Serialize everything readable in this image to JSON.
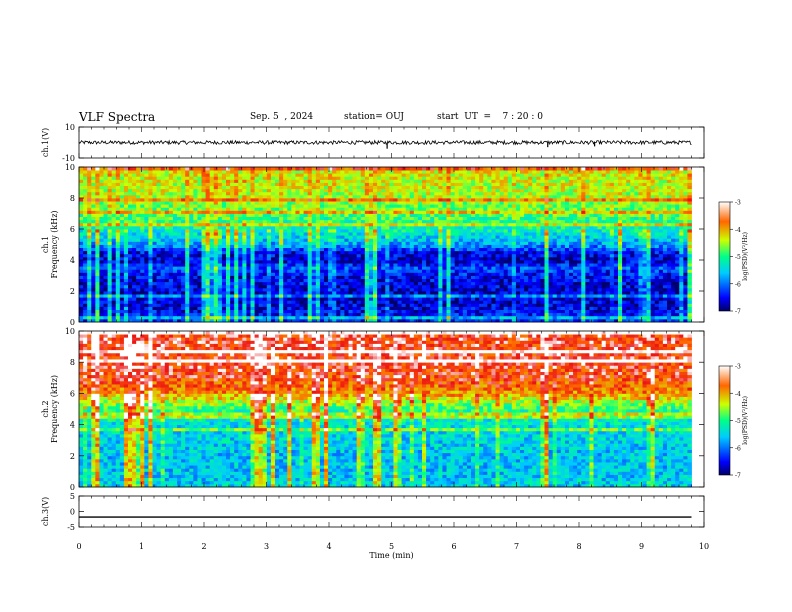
{
  "header": {
    "title": "VLF Spectra",
    "date": "Sep. 5  , 2024",
    "station": "station= OUJ",
    "start": "start  UT  =    7 : 20 : 0"
  },
  "chart_data": [
    {
      "type": "line",
      "panel": "ch1-waveform",
      "ylabel": "ch.1(V)",
      "ylim": [
        -10,
        10
      ],
      "yticks": [
        "10",
        "-10"
      ],
      "xlim": [
        0,
        9.8
      ],
      "baseline": 0,
      "noise_amplitude": 1.2,
      "spikes": [
        {
          "x": 4.93,
          "y": -4
        },
        {
          "x": 7.5,
          "y": -3
        },
        {
          "x": 8.25,
          "y": -2.5
        }
      ],
      "color": "#000000"
    },
    {
      "type": "heatmap",
      "panel": "ch1-spectrogram",
      "ylabel": "ch.1\nFrequency  (kHz)",
      "ylim": [
        0,
        10
      ],
      "yticks": [
        "0",
        "2",
        "4",
        "6",
        "8",
        "10"
      ],
      "xlim": [
        0,
        9.8
      ],
      "frequency_profile_khz": [
        0,
        1,
        2,
        3,
        3.5,
        4,
        4.5,
        5,
        6,
        7,
        8,
        9,
        10
      ],
      "log_psd_profile": [
        -6.3,
        -6.6,
        -6.7,
        -6.5,
        -6.2,
        -6.7,
        -6.5,
        -5.8,
        -5.2,
        -4.8,
        -4.5,
        -4.4,
        -4.3
      ],
      "colorbar": {
        "label": "log(PSD)(V²/Hz)",
        "range": [
          -7,
          -3
        ],
        "ticks": [
          "-3",
          "-4",
          "-5",
          "-6",
          "-7"
        ]
      }
    },
    {
      "type": "heatmap",
      "panel": "ch2-spectrogram",
      "ylabel": "ch.2\nFrequency  (kHz)",
      "ylim": [
        0,
        10
      ],
      "yticks": [
        "0",
        "2",
        "4",
        "6",
        "8",
        "10"
      ],
      "xlim": [
        0,
        9.8
      ],
      "frequency_profile_khz": [
        0,
        1,
        2,
        3,
        4,
        5,
        6,
        7,
        8,
        9,
        10
      ],
      "log_psd_profile": [
        -5.5,
        -5.6,
        -5.6,
        -5.5,
        -5.4,
        -5.0,
        -3.9,
        -3.5,
        -3.4,
        -3.4,
        -3.4
      ],
      "colorbar": {
        "label": "log(PSD)(V²/Hz)",
        "range": [
          -7,
          -3
        ],
        "ticks": [
          "-3",
          "-4",
          "-5",
          "-6",
          "-7"
        ]
      }
    },
    {
      "type": "line",
      "panel": "ch3-waveform",
      "ylabel": "ch.3(V)",
      "ylim": [
        -5,
        5
      ],
      "yticks": [
        "5",
        "0",
        "-5"
      ],
      "xlim": [
        0,
        9.8
      ],
      "baseline": -1.8,
      "color": "#000000"
    }
  ],
  "xaxis": {
    "label": "Time  (min)",
    "ticks": [
      "0",
      "1",
      "2",
      "3",
      "4",
      "5",
      "6",
      "7",
      "8",
      "9",
      "10"
    ],
    "range": [
      0,
      10
    ]
  }
}
